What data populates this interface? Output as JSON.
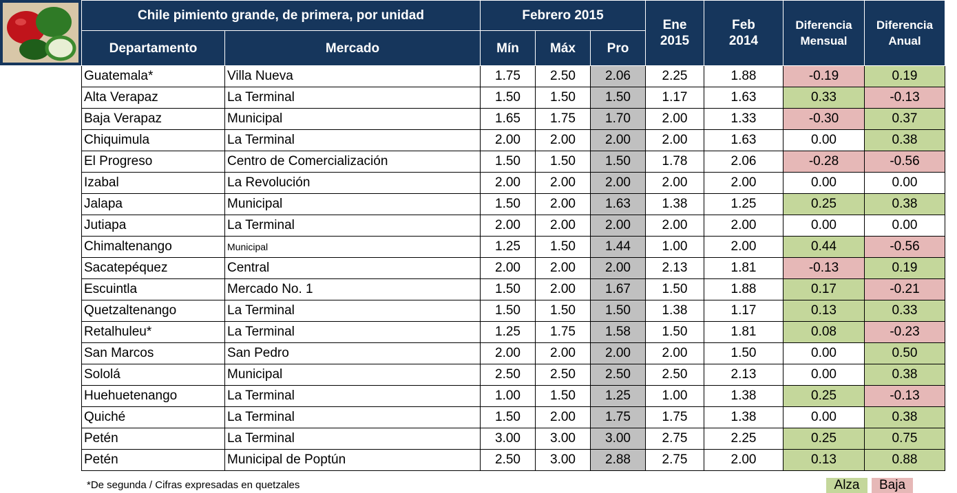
{
  "header": {
    "title": "Chile pimiento grande, de primera, por unidad",
    "period": "Febrero 2015",
    "previous_month": "Ene 2015",
    "previous_year": "Feb 2014",
    "monthly_diff": "Diferencia Mensual",
    "annual_diff": "Diferencia Anual",
    "columns": [
      "Departamento",
      "Mercado",
      "Mín",
      "Máx",
      "Pro"
    ]
  },
  "table": {
    "rows": [
      [
        "Guatemala*",
        "Villa Nueva",
        "1.75",
        "2.50",
        "2.06",
        "2.25",
        "1.88",
        "-0.19",
        "0.19"
      ],
      [
        "Alta Verapaz",
        "La Terminal",
        "1.50",
        "1.50",
        "1.50",
        "1.17",
        "1.63",
        "0.33",
        "-0.13"
      ],
      [
        "Baja Verapaz",
        "Municipal",
        "1.65",
        "1.75",
        "1.70",
        "2.00",
        "1.33",
        "-0.30",
        "0.37"
      ],
      [
        "Chiquimula",
        "La Terminal",
        "2.00",
        "2.00",
        "2.00",
        "2.00",
        "1.63",
        "0.00",
        "0.38"
      ],
      [
        "El Progreso",
        "Centro de Comercialización",
        "1.50",
        "1.50",
        "1.50",
        "1.78",
        "2.06",
        "-0.28",
        "-0.56"
      ],
      [
        "Izabal",
        "La Revolución",
        "2.00",
        "2.00",
        "2.00",
        "2.00",
        "2.00",
        "0.00",
        "0.00"
      ],
      [
        "Jalapa",
        "Municipal",
        "1.50",
        "2.00",
        "1.63",
        "1.38",
        "1.25",
        "0.25",
        "0.38"
      ],
      [
        "Jutiapa",
        "La Terminal",
        "2.00",
        "2.00",
        "2.00",
        "2.00",
        "2.00",
        "0.00",
        "0.00"
      ],
      [
        "Chimaltenango",
        "Municipal",
        "1.25",
        "1.50",
        "1.44",
        "1.00",
        "2.00",
        "0.44",
        "-0.56"
      ],
      [
        "Sacatepéquez",
        "Central",
        "2.00",
        "2.00",
        "2.00",
        "2.13",
        "1.81",
        "-0.13",
        "0.19"
      ],
      [
        "Escuintla",
        "Mercado No. 1",
        "1.50",
        "2.00",
        "1.67",
        "1.50",
        "1.88",
        "0.17",
        "-0.21"
      ],
      [
        "Quetzaltenango",
        "La Terminal",
        "1.50",
        "1.50",
        "1.50",
        "1.38",
        "1.17",
        "0.13",
        "0.33"
      ],
      [
        "Retalhuleu*",
        "La Terminal",
        "1.25",
        "1.75",
        "1.58",
        "1.50",
        "1.81",
        "0.08",
        "-0.23"
      ],
      [
        "San Marcos",
        "San Pedro",
        "2.00",
        "2.00",
        "2.00",
        "2.00",
        "1.50",
        "0.00",
        "0.50"
      ],
      [
        "Sololá",
        "Municipal",
        "2.50",
        "2.50",
        "2.50",
        "2.50",
        "2.13",
        "0.00",
        "0.38"
      ],
      [
        "Huehuetenango",
        "La Terminal",
        "1.00",
        "1.50",
        "1.25",
        "1.00",
        "1.38",
        "0.25",
        "-0.13"
      ],
      [
        "Quiché",
        "La Terminal",
        "1.50",
        "2.00",
        "1.75",
        "1.75",
        "1.38",
        "0.00",
        "0.38"
      ],
      [
        "Petén",
        "La Terminal",
        "3.00",
        "3.00",
        "3.00",
        "2.75",
        "2.25",
        "0.25",
        "0.75"
      ],
      [
        "Petén",
        "Municipal de Poptún",
        "2.50",
        "3.00",
        "2.88",
        "2.75",
        "2.00",
        "0.13",
        "0.88"
      ]
    ]
  },
  "footer": {
    "note": "*De segunda / Cifras expresadas en quetzales",
    "legend_up": "Alza",
    "legend_down": "Baja"
  }
}
